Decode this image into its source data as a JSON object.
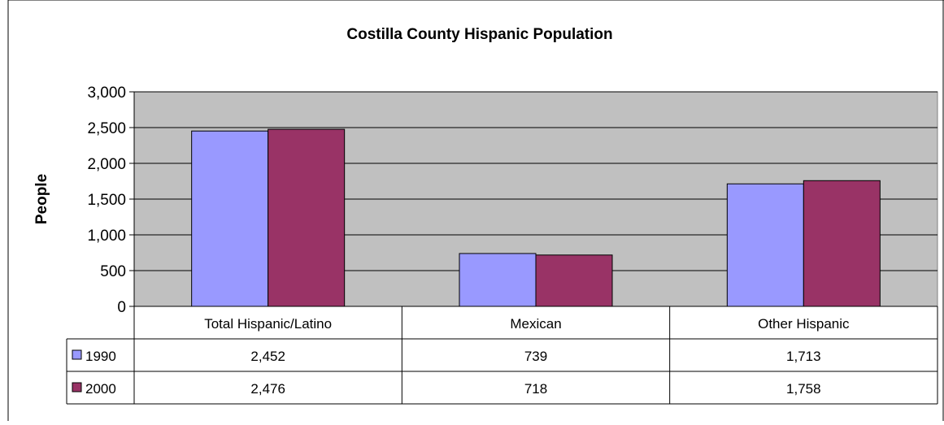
{
  "chart_data": {
    "type": "bar",
    "title": "Costilla County Hispanic Population",
    "xlabel": "",
    "ylabel": "People",
    "categories": [
      "Total Hispanic/Latino",
      "Mexican",
      "Other Hispanic"
    ],
    "series": [
      {
        "name": "1990",
        "values": [
          2452,
          739,
          1713
        ],
        "labels": [
          "2,452",
          "739",
          "1,713"
        ],
        "color": "#9999ff"
      },
      {
        "name": "2000",
        "values": [
          2476,
          718,
          1758
        ],
        "labels": [
          "2,476",
          "718",
          "1,758"
        ],
        "color": "#993366"
      }
    ],
    "ylim": [
      0,
      3000
    ],
    "yticks": [
      0,
      500,
      1000,
      1500,
      2000,
      2500,
      3000
    ],
    "ytick_labels": [
      "0",
      "500",
      "1,000",
      "1,500",
      "2,000",
      "2,500",
      "3,000"
    ],
    "grid": true,
    "plot_background": "#c0c0c0",
    "legend": "data-table-left"
  }
}
